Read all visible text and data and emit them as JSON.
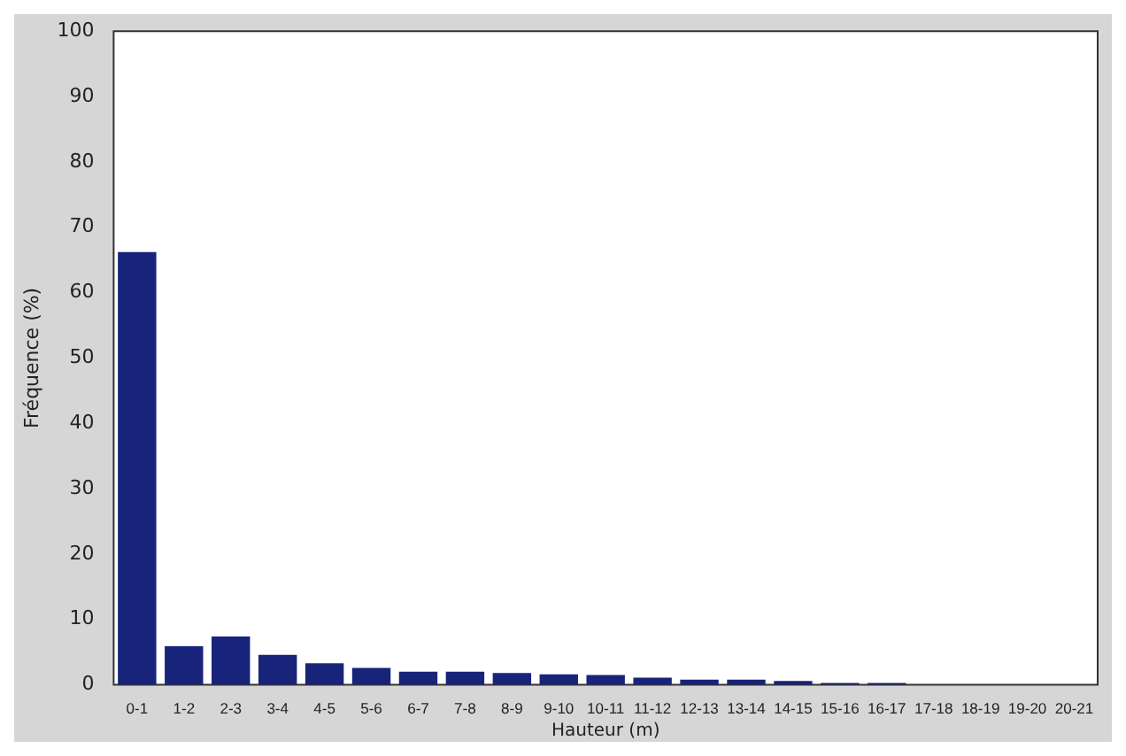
{
  "chart_data": {
    "type": "bar",
    "xlabel": "Hauteur (m)",
    "ylabel": "Fréquence (%)",
    "categories": [
      "0-1",
      "1-2",
      "2-3",
      "3-4",
      "4-5",
      "5-6",
      "6-7",
      "7-8",
      "8-9",
      "9-10",
      "10-11",
      "11-12",
      "12-13",
      "13-14",
      "14-15",
      "15-16",
      "16-17",
      "17-18",
      "18-19",
      "19-20",
      "20-21"
    ],
    "values": [
      66.2,
      5.9,
      7.4,
      4.6,
      3.3,
      2.6,
      2.0,
      2.0,
      1.8,
      1.6,
      1.5,
      1.1,
      0.8,
      0.8,
      0.6,
      0.3,
      0.3,
      0,
      0,
      0,
      0
    ],
    "color": "#18237a",
    "ylim": [
      0,
      100
    ],
    "yticks": [
      0,
      10,
      20,
      30,
      40,
      50,
      60,
      70,
      80,
      90,
      100
    ],
    "grid": false,
    "legend": false
  }
}
